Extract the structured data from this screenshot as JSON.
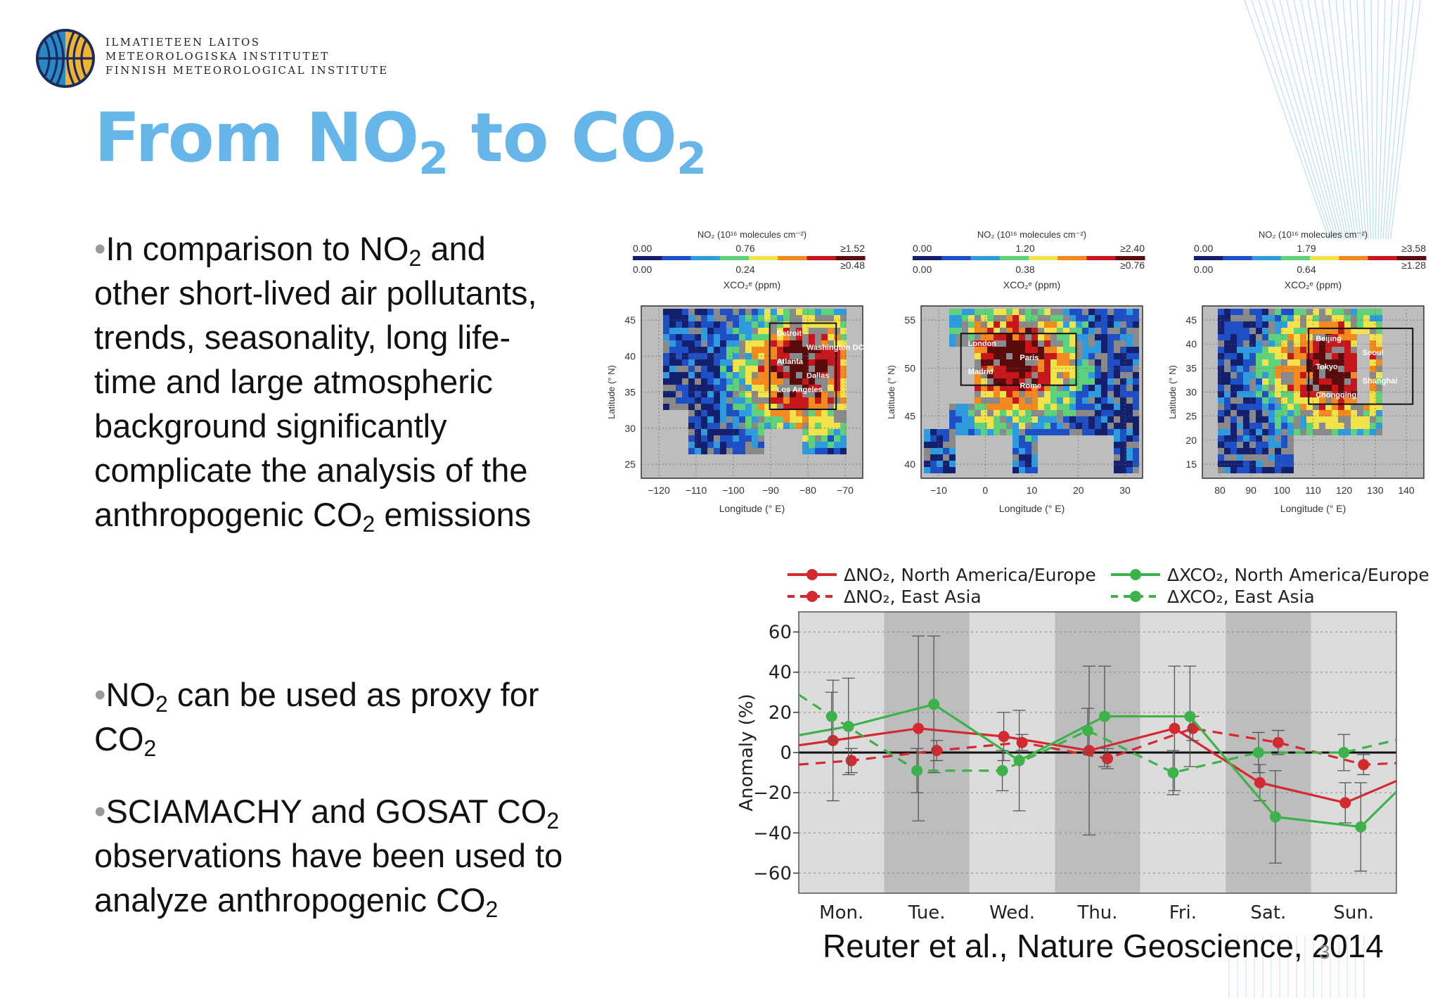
{
  "logo": {
    "line1": "ILMATIETEEN LAITOS",
    "line2": "METEOROLOGISKA INSTITUTET",
    "line3": "FINNISH METEOROLOGICAL INSTITUTE",
    "colors": [
      "#1a2b5c",
      "#2b88c8",
      "#f2b233"
    ]
  },
  "title": {
    "prefix": "From NO",
    "sub1": "2",
    "middle": " to CO",
    "sub2": "2",
    "color": "#67b6ea"
  },
  "bullets": [
    {
      "a": "In comparison to NO",
      "a_sub": "2",
      "b": " and other short-lived air pollutants, trends, seasonality, long life-time and large atmospheric background significantly complicate the analysis of the anthropogenic CO",
      "b_sub": "2",
      "c": " emissions"
    },
    {
      "a": "NO",
      "a_sub": "2",
      "b": " can be used as proxy for CO",
      "b_sub": "2"
    },
    {
      "a": "SCIAMACHY and GOSAT CO",
      "a_sub": "2",
      "b": " observations have been used to analyze anthropogenic CO",
      "b_sub": "2"
    }
  ],
  "citation": "Reuter et al., Nature Geoscience, 2014",
  "slide_number": "3",
  "maps": [
    {
      "no2_label": "NO₂ (10¹⁶ molecules cm⁻²)",
      "no2_ticks": [
        "0.00",
        "0.76",
        "≥1.52"
      ],
      "xco2_ticks": [
        "0.00",
        "0.24",
        "≥0.48"
      ],
      "xco2_label": "XCO₂ᵉ (ppm)",
      "lat_ticks": [
        "45",
        "40",
        "35",
        "30",
        "25"
      ],
      "lon_ticks": [
        "−120",
        "−110",
        "−100",
        "−90",
        "−80",
        "−70"
      ],
      "ylabel": "Latitude (° N)",
      "xlabel": "Longitude (° E)",
      "cities": [
        "Detroit",
        "Washington DC",
        "Atlanta",
        "Dallas",
        "Los Angeles"
      ]
    },
    {
      "no2_label": "NO₂ (10¹⁶ molecules cm⁻²)",
      "no2_ticks": [
        "0.00",
        "1.20",
        "≥2.40"
      ],
      "xco2_ticks": [
        "0.00",
        "0.38",
        "≥0.76"
      ],
      "xco2_label": "XCO₂ᵉ (ppm)",
      "lat_ticks": [
        "55",
        "50",
        "45",
        "40"
      ],
      "lon_ticks": [
        "−10",
        "0",
        "10",
        "20",
        "30"
      ],
      "ylabel": "Latitude (° N)",
      "xlabel": "Longitude (° E)",
      "cities": [
        "London",
        "Paris",
        "Madrid",
        "Rome"
      ]
    },
    {
      "no2_label": "NO₂ (10¹⁶ molecules cm⁻²)",
      "no2_ticks": [
        "0.00",
        "1.79",
        "≥3.58"
      ],
      "xco2_ticks": [
        "0.00",
        "0.64",
        "≥1.28"
      ],
      "xco2_label": "XCO₂ᵉ (ppm)",
      "lat_ticks": [
        "45",
        "40",
        "35",
        "30",
        "25",
        "20",
        "15"
      ],
      "lon_ticks": [
        "80",
        "90",
        "100",
        "110",
        "120",
        "130",
        "140"
      ],
      "ylabel": "Latitude (° N)",
      "xlabel": "Longitude (° E)",
      "cities": [
        "Beijing",
        "Seoul",
        "Tokyo",
        "Shanghai",
        "Chongqing"
      ]
    }
  ],
  "chart_data": {
    "type": "line",
    "categories": [
      "Mon.",
      "Tue.",
      "Wed.",
      "Thu.",
      "Fri.",
      "Sat.",
      "Sun."
    ],
    "ylabel": "Anomaly (%)",
    "ylim": [
      -70,
      70
    ],
    "yticks": [
      60,
      40,
      20,
      0,
      -20,
      -40,
      -60
    ],
    "ytick_labels": [
      "60",
      "40",
      "20",
      "0",
      "−20",
      "−40",
      "−60"
    ],
    "legend_placement": "top",
    "grid": true,
    "series": [
      {
        "name": "ΔNO₂, North America/Europe",
        "color": "#d42a2f",
        "dash": false,
        "values": [
          6,
          12,
          8,
          1,
          12,
          -15,
          -25
        ],
        "err": [
          30,
          46,
          12,
          42,
          31,
          9,
          10
        ]
      },
      {
        "name": "ΔNO₂, East Asia",
        "color": "#d42a2f",
        "dash": true,
        "values": [
          -4,
          1,
          5,
          -3,
          12,
          5,
          -6
        ],
        "err": [
          6,
          5,
          4,
          5,
          6,
          6,
          5
        ]
      },
      {
        "name": "ΔXCO₂, North America/Europe",
        "color": "#3db24a",
        "dash": false,
        "values": [
          13,
          24,
          -4,
          18,
          18,
          -32,
          -37
        ],
        "err": [
          24,
          34,
          25,
          25,
          25,
          23,
          22
        ]
      },
      {
        "name": "ΔXCO₂, East Asia",
        "color": "#3db24a",
        "dash": true,
        "values": [
          18,
          -9,
          -9,
          11,
          -10,
          0,
          0
        ],
        "err": [
          12,
          11,
          10,
          11,
          11,
          10,
          9
        ]
      }
    ]
  }
}
